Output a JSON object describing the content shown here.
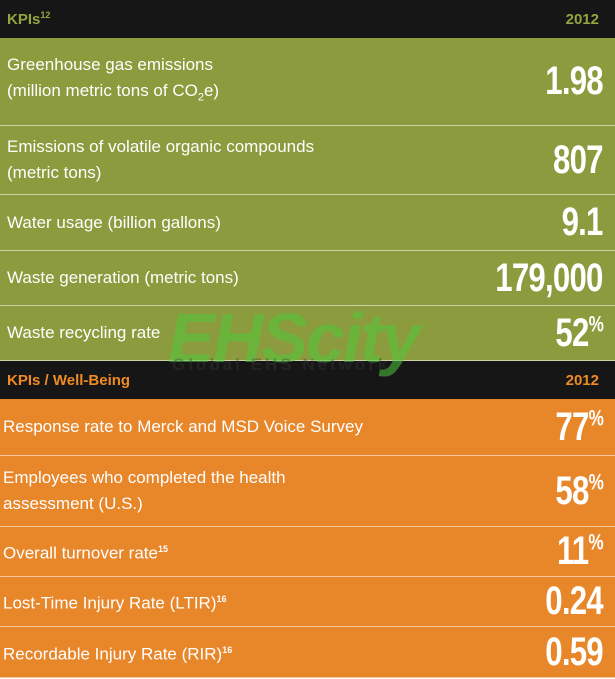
{
  "tables": [
    {
      "header": {
        "title": "KPIs",
        "title_note": "12",
        "year": "2012"
      },
      "theme": "green",
      "rows": [
        {
          "lines": [
            [
              {
                "text": "Greenhouse gas emissions"
              }
            ],
            [
              {
                "text": "(million metric tons of CO"
              },
              {
                "text": "2",
                "style": "sub"
              },
              {
                "text": "e)"
              }
            ]
          ],
          "value": "1.98"
        },
        {
          "lines": [
            [
              {
                "text": "Emissions of volatile organic compounds"
              }
            ],
            [
              {
                "text": "(metric tons)"
              }
            ]
          ],
          "value": "807"
        },
        {
          "lines": [
            [
              {
                "text": "Water usage (billion gallons)"
              }
            ]
          ],
          "value": "9.1"
        },
        {
          "lines": [
            [
              {
                "text": "Waste generation (metric tons)"
              }
            ]
          ],
          "value": "179,000"
        },
        {
          "lines": [
            [
              {
                "text": "Waste recycling rate"
              }
            ]
          ],
          "value": "52",
          "unit": "%"
        }
      ]
    },
    {
      "header": {
        "title": "KPIs / Well-Being",
        "year": "2012"
      },
      "theme": "orange",
      "rows": [
        {
          "lines": [
            [
              {
                "text": "Response rate to Merck and MSD Voice Survey"
              }
            ]
          ],
          "value": "77",
          "unit": "%"
        },
        {
          "lines": [
            [
              {
                "text": "Employees who completed the health"
              }
            ],
            [
              {
                "text": "assessment (U.S.)"
              }
            ]
          ],
          "value": "58",
          "unit": "%"
        },
        {
          "lines": [
            [
              {
                "text": "Overall turnover rate"
              },
              {
                "text": "15",
                "style": "sup"
              }
            ]
          ],
          "value": "11",
          "unit": "%"
        },
        {
          "lines": [
            [
              {
                "text": "Lost-Time Injury Rate (LTIR)"
              },
              {
                "text": "16",
                "style": "sup"
              }
            ]
          ],
          "value": "0.24"
        },
        {
          "lines": [
            [
              {
                "text": "Recordable Injury Rate (RIR)"
              },
              {
                "text": "16",
                "style": "sup"
              }
            ]
          ],
          "value": "0.59"
        }
      ]
    }
  ],
  "watermark": {
    "title": "EHScity",
    "subtitle": "Global EHS Network"
  }
}
